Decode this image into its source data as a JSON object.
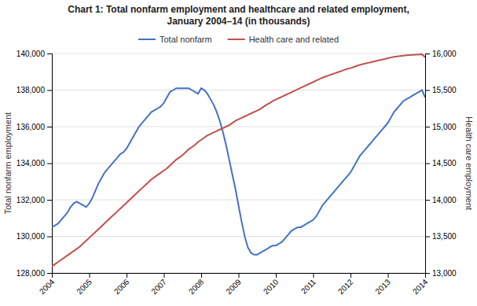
{
  "chart_data": {
    "type": "line",
    "title": "Chart 1: Total nonfarm employment and healthcare and related employment,\nJanuary 2004–14 (in thousands)",
    "ylabel": "Total nonfarm employment",
    "y2label": "Health care employment",
    "categories": [
      "2004",
      null,
      null,
      null,
      null,
      null,
      null,
      null,
      null,
      null,
      null,
      null,
      "2005",
      null,
      null,
      null,
      null,
      null,
      null,
      null,
      null,
      null,
      null,
      null,
      "2006",
      null,
      null,
      null,
      null,
      null,
      null,
      null,
      null,
      null,
      null,
      null,
      "2007",
      null,
      null,
      null,
      null,
      null,
      null,
      null,
      null,
      null,
      null,
      null,
      "2008",
      null,
      null,
      null,
      null,
      null,
      null,
      null,
      null,
      null,
      null,
      null,
      "2009",
      null,
      null,
      null,
      null,
      null,
      null,
      null,
      null,
      null,
      null,
      null,
      "2010",
      null,
      null,
      null,
      null,
      null,
      null,
      null,
      null,
      null,
      null,
      null,
      "2011",
      null,
      null,
      null,
      null,
      null,
      null,
      null,
      null,
      null,
      null,
      null,
      "2012",
      null,
      null,
      null,
      null,
      null,
      null,
      null,
      null,
      null,
      null,
      null,
      "2013",
      null,
      null,
      null,
      null,
      null,
      null,
      null,
      null,
      null,
      null,
      null,
      "2014"
    ],
    "ylim": [
      128000,
      140000
    ],
    "yticks": [
      {
        "value": 128000,
        "label": "128,000"
      },
      {
        "value": 130000,
        "label": "130,000"
      },
      {
        "value": 132000,
        "label": "132,000"
      },
      {
        "value": 134000,
        "label": "134,000"
      },
      {
        "value": 136000,
        "label": "136,000"
      },
      {
        "value": 138000,
        "label": "138,000"
      },
      {
        "value": 140000,
        "label": "140,000"
      }
    ],
    "y2lim": [
      13000,
      16000
    ],
    "y2ticks": [
      {
        "value": 13000,
        "label": "13,000"
      },
      {
        "value": 13500,
        "label": "13,500"
      },
      {
        "value": 14000,
        "label": "14,000"
      },
      {
        "value": 14500,
        "label": "14,500"
      },
      {
        "value": 15000,
        "label": "15,000"
      },
      {
        "value": 15500,
        "label": "15,500"
      },
      {
        "value": 16000,
        "label": "16,000"
      }
    ],
    "grid": true,
    "legend": "top",
    "series": [
      {
        "name": "Total nonfarm",
        "color": "#4472c4",
        "values": [
          130500,
          130600,
          130700,
          130900,
          131100,
          131300,
          131600,
          131800,
          131900,
          131800,
          131700,
          131600,
          131800,
          132100,
          132500,
          132900,
          133200,
          133500,
          133700,
          133900,
          134100,
          134300,
          134500,
          134600,
          134800,
          135100,
          135400,
          135700,
          136000,
          136200,
          136400,
          136600,
          136800,
          136900,
          137000,
          137100,
          137300,
          137600,
          137900,
          138000,
          138100,
          138100,
          138100,
          138100,
          138100,
          138000,
          137900,
          137800,
          138100,
          138000,
          137800,
          137500,
          137200,
          136800,
          136300,
          135700,
          135000,
          134200,
          133400,
          132600,
          131700,
          130800,
          130000,
          129400,
          129100,
          129000,
          129000,
          129100,
          129200,
          129300,
          129400,
          129500,
          129500,
          129600,
          129700,
          129900,
          130100,
          130300,
          130400,
          130500,
          130500,
          130600,
          130700,
          130800,
          130900,
          131100,
          131400,
          131700,
          131900,
          132100,
          132300,
          132500,
          132700,
          132900,
          133100,
          133300,
          133500,
          133800,
          134100,
          134400,
          134600,
          134800,
          135000,
          135200,
          135400,
          135600,
          135800,
          136000,
          136200,
          136500,
          136800,
          137000,
          137200,
          137400,
          137500,
          137600,
          137700,
          137800,
          137900,
          138000,
          137600
        ]
      },
      {
        "name": "Health care and related",
        "color": "#c0504d",
        "axis": "y2",
        "values": [
          13090,
          13120,
          13150,
          13180,
          13210,
          13240,
          13270,
          13300,
          13330,
          13360,
          13400,
          13440,
          13480,
          13520,
          13560,
          13600,
          13640,
          13680,
          13720,
          13760,
          13800,
          13840,
          13880,
          13920,
          13960,
          14000,
          14040,
          14080,
          14120,
          14160,
          14200,
          14240,
          14280,
          14310,
          14340,
          14370,
          14400,
          14430,
          14470,
          14510,
          14550,
          14580,
          14610,
          14650,
          14690,
          14720,
          14750,
          14790,
          14820,
          14850,
          14880,
          14900,
          14920,
          14940,
          14960,
          14980,
          15000,
          15020,
          15050,
          15080,
          15100,
          15120,
          15140,
          15160,
          15180,
          15200,
          15220,
          15240,
          15270,
          15300,
          15320,
          15350,
          15370,
          15390,
          15410,
          15430,
          15450,
          15470,
          15490,
          15510,
          15530,
          15550,
          15570,
          15590,
          15610,
          15630,
          15650,
          15670,
          15685,
          15700,
          15715,
          15730,
          15745,
          15760,
          15775,
          15790,
          15800,
          15815,
          15830,
          15845,
          15855,
          15865,
          15875,
          15885,
          15895,
          15905,
          15915,
          15925,
          15935,
          15945,
          15955,
          15960,
          15965,
          15970,
          15975,
          15978,
          15981,
          15984,
          15987,
          15990,
          15950
        ]
      }
    ]
  }
}
